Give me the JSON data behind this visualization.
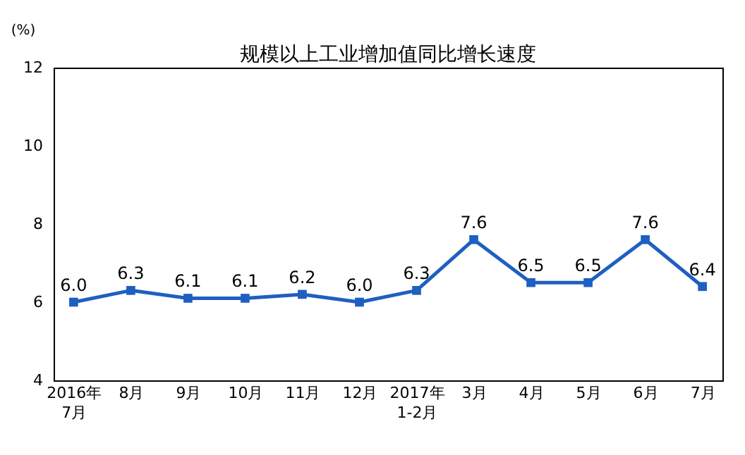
{
  "chart_data": {
    "type": "line",
    "title": "规模以上工业增加值同比增长速度",
    "ylabel": "(%)",
    "categories": [
      "2016年\n7月",
      "8月",
      "9月",
      "10月",
      "11月",
      "12月",
      "2017年\n1-2月",
      "3月",
      "4月",
      "5月",
      "6月",
      "7月"
    ],
    "series": [
      {
        "color": "#1f5fc0",
        "values": [
          6.0,
          6.3,
          6.1,
          6.1,
          6.2,
          6.0,
          6.3,
          7.6,
          6.5,
          6.5,
          7.6,
          6.4
        ]
      }
    ],
    "value_labels": [
      "6.0",
      "6.3",
      "6.1",
      "6.1",
      "6.2",
      "6.0",
      "6.3",
      "7.6",
      "6.5",
      "6.5",
      "7.6",
      "6.4"
    ],
    "ylim": [
      4,
      12
    ],
    "yticks": [
      4,
      6,
      8,
      10,
      12
    ],
    "grid": false,
    "marker": "square",
    "line_style": "solid"
  }
}
